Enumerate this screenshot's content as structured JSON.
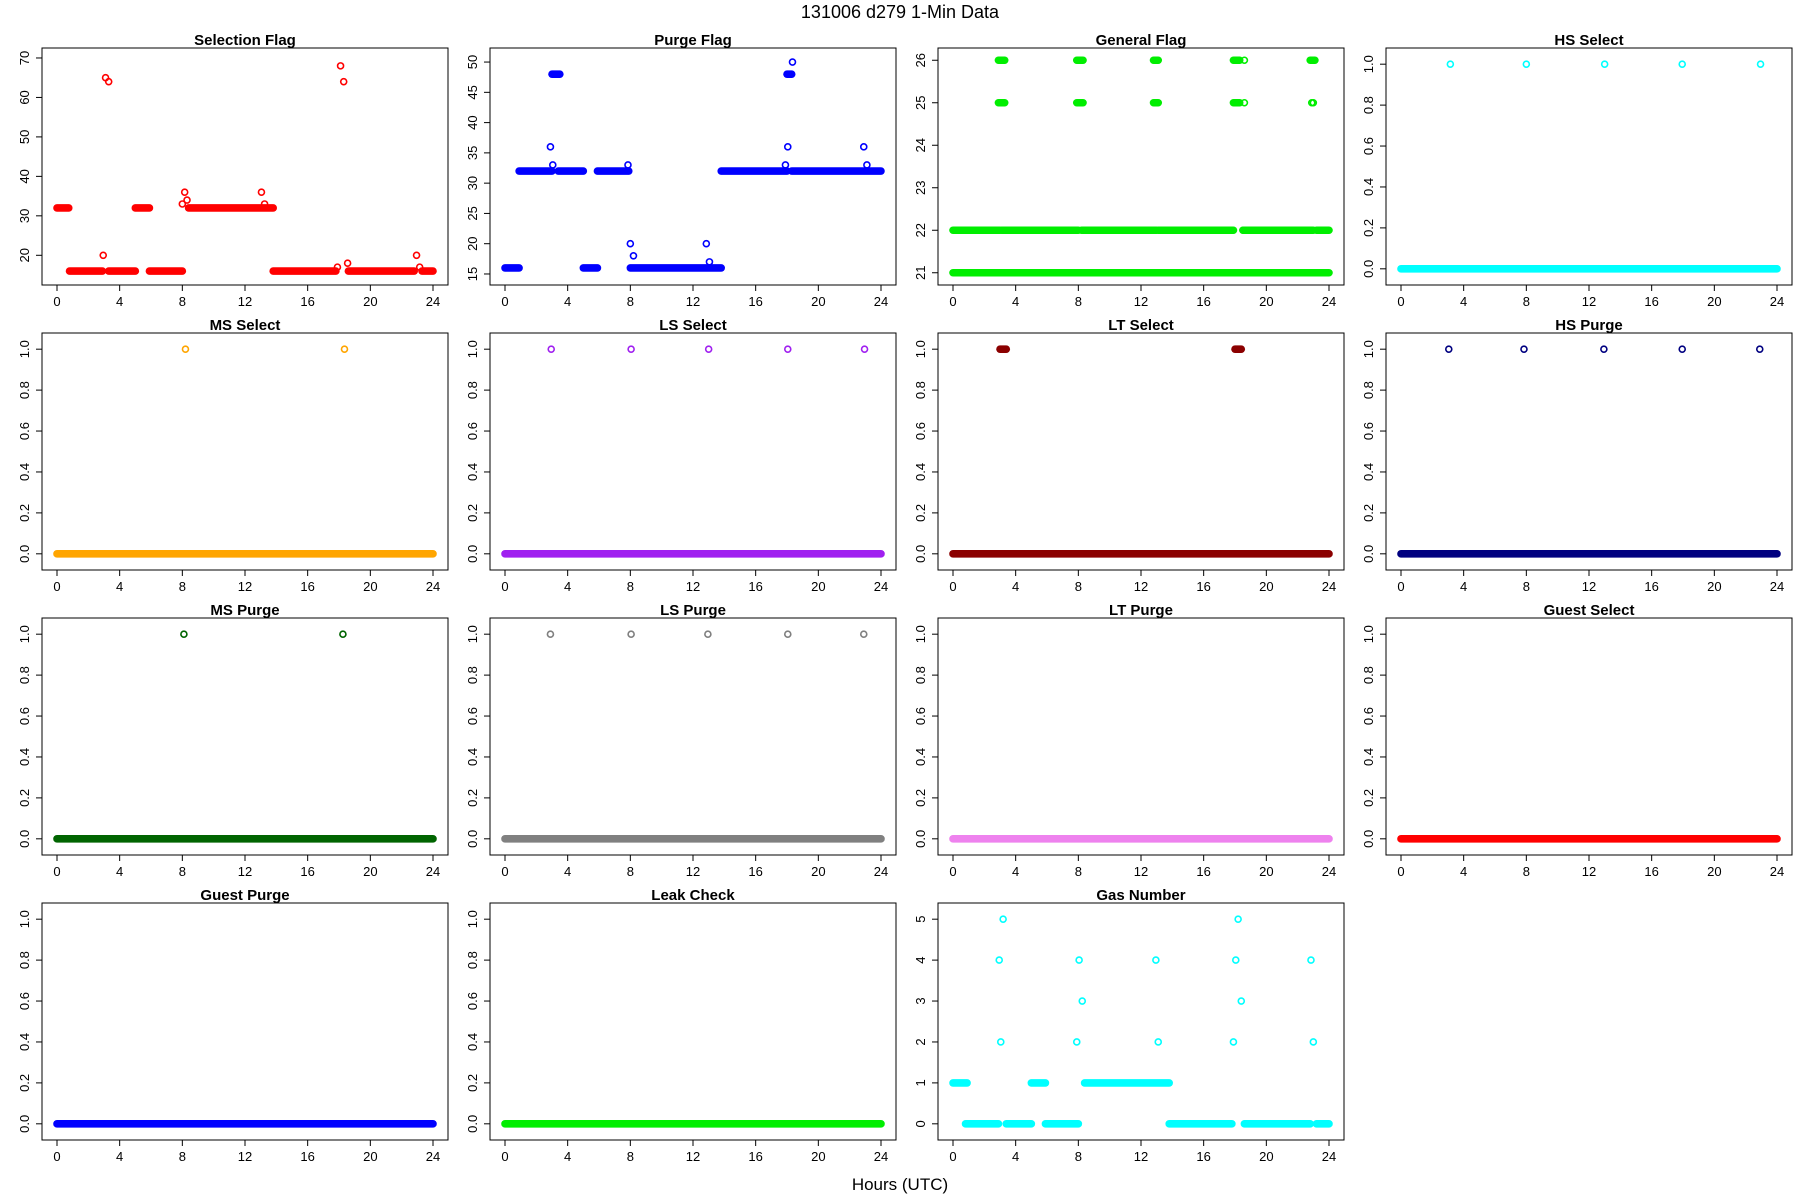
{
  "figure": {
    "title": "131006    d279    1-Min Data",
    "xlabel": "Hours (UTC)"
  },
  "chart_data": [
    {
      "type": "scatter",
      "title": "Selection Flag",
      "color": "#ff0000",
      "xlim": [
        0,
        24
      ],
      "ylim": [
        14.5,
        70.5
      ],
      "xticks": [
        0,
        4,
        8,
        12,
        16,
        20,
        24
      ],
      "yticks": [
        20,
        30,
        40,
        50,
        60,
        70
      ],
      "runs": [
        [
          0,
          0.75,
          32
        ],
        [
          0.8,
          2.9,
          16
        ],
        [
          3.3,
          5.0,
          16
        ],
        [
          5.0,
          5.9,
          32
        ],
        [
          5.9,
          8.0,
          16
        ],
        [
          8.4,
          13.8,
          32
        ],
        [
          13.8,
          17.8,
          16
        ],
        [
          18.6,
          22.8,
          16
        ],
        [
          23.3,
          24,
          16
        ]
      ],
      "points": [
        [
          2.95,
          20
        ],
        [
          3.1,
          65
        ],
        [
          3.3,
          64
        ],
        [
          8.0,
          33
        ],
        [
          8.15,
          36
        ],
        [
          8.3,
          34
        ],
        [
          13.05,
          36
        ],
        [
          13.25,
          33
        ],
        [
          17.9,
          17
        ],
        [
          18.1,
          68
        ],
        [
          18.3,
          64
        ],
        [
          18.55,
          18
        ],
        [
          22.95,
          20
        ],
        [
          23.15,
          17
        ]
      ]
    },
    {
      "type": "scatter",
      "title": "Purge Flag",
      "color": "#0000ff",
      "xlim": [
        0,
        24
      ],
      "ylim": [
        14.5,
        51
      ],
      "xticks": [
        0,
        4,
        8,
        12,
        16,
        20,
        24
      ],
      "yticks": [
        15,
        20,
        25,
        30,
        35,
        40,
        45,
        50
      ],
      "runs": [
        [
          0,
          0.9,
          16
        ],
        [
          0.9,
          3.0,
          32
        ],
        [
          3.0,
          3.5,
          48
        ],
        [
          3.4,
          5.0,
          32
        ],
        [
          5.0,
          5.9,
          16
        ],
        [
          5.9,
          7.9,
          32
        ],
        [
          8.0,
          13.8,
          16
        ],
        [
          13.8,
          18.0,
          32
        ],
        [
          18.0,
          18.3,
          48
        ],
        [
          18.3,
          24,
          32
        ]
      ],
      "points": [
        [
          2.9,
          36
        ],
        [
          3.05,
          33
        ],
        [
          7.85,
          33
        ],
        [
          8.0,
          20
        ],
        [
          8.2,
          18
        ],
        [
          12.85,
          20
        ],
        [
          13.05,
          17
        ],
        [
          17.9,
          33
        ],
        [
          18.05,
          36
        ],
        [
          18.35,
          50
        ],
        [
          22.9,
          36
        ],
        [
          23.1,
          33
        ]
      ]
    },
    {
      "type": "scatter",
      "title": "General Flag",
      "color": "#00ee00",
      "xlim": [
        0,
        24
      ],
      "ylim": [
        20.9,
        26.1
      ],
      "xticks": [
        0,
        4,
        8,
        12,
        16,
        20,
        24
      ],
      "yticks": [
        21,
        22,
        23,
        24,
        25,
        26
      ],
      "runs": [
        [
          0,
          24,
          21
        ],
        [
          0,
          3.0,
          22
        ],
        [
          3.1,
          8.0,
          22
        ],
        [
          8.2,
          13.0,
          22
        ],
        [
          13.1,
          17.9,
          22
        ],
        [
          18.5,
          23.0,
          22
        ],
        [
          23.2,
          24,
          22
        ],
        [
          2.9,
          3.3,
          25
        ],
        [
          7.9,
          8.3,
          25
        ],
        [
          12.8,
          13.1,
          25
        ],
        [
          17.9,
          18.3,
          25
        ],
        [
          2.9,
          3.3,
          26
        ],
        [
          7.9,
          8.3,
          26
        ],
        [
          12.8,
          13.1,
          26
        ],
        [
          17.9,
          18.3,
          26
        ],
        [
          22.8,
          23.1,
          26
        ]
      ],
      "points": [
        [
          18.6,
          25
        ],
        [
          18.6,
          26
        ],
        [
          18.55,
          22
        ],
        [
          22.9,
          25
        ],
        [
          23.0,
          25
        ]
      ]
    },
    {
      "type": "scatter",
      "title": "HS Select",
      "color": "#00ffff",
      "xlim": [
        0,
        24
      ],
      "ylim": [
        -0.04,
        1.04
      ],
      "xticks": [
        0,
        4,
        8,
        12,
        16,
        20,
        24
      ],
      "yticks": [
        0.0,
        0.2,
        0.4,
        0.6,
        0.8,
        1.0
      ],
      "runs": [
        [
          0,
          24,
          0
        ]
      ],
      "points": [
        [
          3.15,
          1
        ],
        [
          8.0,
          1
        ],
        [
          13.0,
          1
        ],
        [
          17.95,
          1
        ],
        [
          22.95,
          1
        ]
      ]
    },
    {
      "type": "scatter",
      "title": "MS Select",
      "color": "#ffa500",
      "xlim": [
        0,
        24
      ],
      "ylim": [
        -0.04,
        1.04
      ],
      "xticks": [
        0,
        4,
        8,
        12,
        16,
        20,
        24
      ],
      "yticks": [
        0.0,
        0.2,
        0.4,
        0.6,
        0.8,
        1.0
      ],
      "runs": [
        [
          0,
          24,
          0
        ]
      ],
      "points": [
        [
          8.2,
          1
        ],
        [
          18.35,
          1
        ]
      ]
    },
    {
      "type": "scatter",
      "title": "LS Select",
      "color": "#a020f0",
      "xlim": [
        0,
        24
      ],
      "ylim": [
        -0.04,
        1.04
      ],
      "xticks": [
        0,
        4,
        8,
        12,
        16,
        20,
        24
      ],
      "yticks": [
        0.0,
        0.2,
        0.4,
        0.6,
        0.8,
        1.0
      ],
      "runs": [
        [
          0,
          24,
          0
        ]
      ],
      "points": [
        [
          2.95,
          1
        ],
        [
          8.05,
          1
        ],
        [
          13.0,
          1
        ],
        [
          18.05,
          1
        ],
        [
          22.95,
          1
        ]
      ]
    },
    {
      "type": "scatter",
      "title": "LT Select",
      "color": "#8b0000",
      "xlim": [
        0,
        24
      ],
      "ylim": [
        -0.04,
        1.04
      ],
      "xticks": [
        0,
        4,
        8,
        12,
        16,
        20,
        24
      ],
      "yticks": [
        0.0,
        0.2,
        0.4,
        0.6,
        0.8,
        1.0
      ],
      "runs": [
        [
          0,
          24,
          0
        ],
        [
          3.0,
          3.4,
          1
        ],
        [
          18.0,
          18.4,
          1
        ]
      ],
      "points": []
    },
    {
      "type": "scatter",
      "title": "HS Purge",
      "color": "#000080",
      "xlim": [
        0,
        24
      ],
      "ylim": [
        -0.04,
        1.04
      ],
      "xticks": [
        0,
        4,
        8,
        12,
        16,
        20,
        24
      ],
      "yticks": [
        0.0,
        0.2,
        0.4,
        0.6,
        0.8,
        1.0
      ],
      "runs": [
        [
          0,
          24,
          0
        ]
      ],
      "points": [
        [
          3.05,
          1
        ],
        [
          7.85,
          1
        ],
        [
          12.95,
          1
        ],
        [
          17.95,
          1
        ],
        [
          22.9,
          1
        ]
      ]
    },
    {
      "type": "scatter",
      "title": "MS Purge",
      "color": "#006400",
      "xlim": [
        0,
        24
      ],
      "ylim": [
        -0.04,
        1.04
      ],
      "xticks": [
        0,
        4,
        8,
        12,
        16,
        20,
        24
      ],
      "yticks": [
        0.0,
        0.2,
        0.4,
        0.6,
        0.8,
        1.0
      ],
      "runs": [
        [
          0,
          24,
          0
        ]
      ],
      "points": [
        [
          8.1,
          1
        ],
        [
          18.25,
          1
        ]
      ]
    },
    {
      "type": "scatter",
      "title": "LS Purge",
      "color": "#808080",
      "xlim": [
        0,
        24
      ],
      "ylim": [
        -0.04,
        1.04
      ],
      "xticks": [
        0,
        4,
        8,
        12,
        16,
        20,
        24
      ],
      "yticks": [
        0.0,
        0.2,
        0.4,
        0.6,
        0.8,
        1.0
      ],
      "runs": [
        [
          0,
          24,
          0
        ]
      ],
      "points": [
        [
          2.9,
          1
        ],
        [
          8.05,
          1
        ],
        [
          12.95,
          1
        ],
        [
          18.05,
          1
        ],
        [
          22.9,
          1
        ]
      ]
    },
    {
      "type": "scatter",
      "title": "LT Purge",
      "color": "#ee82ee",
      "xlim": [
        0,
        24
      ],
      "ylim": [
        -0.04,
        1.04
      ],
      "xticks": [
        0,
        4,
        8,
        12,
        16,
        20,
        24
      ],
      "yticks": [
        0.0,
        0.2,
        0.4,
        0.6,
        0.8,
        1.0
      ],
      "runs": [
        [
          0,
          24,
          0
        ]
      ],
      "points": []
    },
    {
      "type": "scatter",
      "title": "Guest Select",
      "color": "#ff0000",
      "xlim": [
        0,
        24
      ],
      "ylim": [
        -0.04,
        1.04
      ],
      "xticks": [
        0,
        4,
        8,
        12,
        16,
        20,
        24
      ],
      "yticks": [
        0.0,
        0.2,
        0.4,
        0.6,
        0.8,
        1.0
      ],
      "runs": [
        [
          0,
          24,
          0
        ]
      ],
      "points": []
    },
    {
      "type": "scatter",
      "title": "Guest Purge",
      "color": "#0000ff",
      "xlim": [
        0,
        24
      ],
      "ylim": [
        -0.04,
        1.04
      ],
      "xticks": [
        0,
        4,
        8,
        12,
        16,
        20,
        24
      ],
      "yticks": [
        0.0,
        0.2,
        0.4,
        0.6,
        0.8,
        1.0
      ],
      "runs": [
        [
          0,
          24,
          0
        ]
      ],
      "points": []
    },
    {
      "type": "scatter",
      "title": "Leak Check",
      "color": "#00ee00",
      "xlim": [
        0,
        24
      ],
      "ylim": [
        -0.04,
        1.04
      ],
      "xticks": [
        0,
        4,
        8,
        12,
        16,
        20,
        24
      ],
      "yticks": [
        0.0,
        0.2,
        0.4,
        0.6,
        0.8,
        1.0
      ],
      "runs": [
        [
          0,
          24,
          0
        ]
      ],
      "points": []
    },
    {
      "type": "scatter",
      "title": "Gas Number",
      "color": "#00ffff",
      "xlim": [
        0,
        24
      ],
      "ylim": [
        -0.2,
        5.2
      ],
      "xticks": [
        0,
        4,
        8,
        12,
        16,
        20,
        24
      ],
      "yticks": [
        0,
        1,
        2,
        3,
        4,
        5
      ],
      "runs": [
        [
          0,
          0.9,
          1
        ],
        [
          0.8,
          2.9,
          0
        ],
        [
          3.4,
          5.0,
          0
        ],
        [
          5.0,
          5.9,
          1
        ],
        [
          5.9,
          8.0,
          0
        ],
        [
          8.4,
          13.8,
          1
        ],
        [
          13.8,
          17.8,
          0
        ],
        [
          18.6,
          22.8,
          0
        ],
        [
          23.2,
          24,
          0
        ]
      ],
      "points": [
        [
          2.95,
          4
        ],
        [
          3.05,
          2
        ],
        [
          3.2,
          5
        ],
        [
          7.9,
          2
        ],
        [
          8.05,
          4
        ],
        [
          8.25,
          3
        ],
        [
          12.95,
          4
        ],
        [
          13.1,
          2
        ],
        [
          17.9,
          2
        ],
        [
          18.05,
          4
        ],
        [
          18.2,
          5
        ],
        [
          18.4,
          3
        ],
        [
          22.85,
          4
        ],
        [
          23.0,
          2
        ]
      ]
    }
  ]
}
